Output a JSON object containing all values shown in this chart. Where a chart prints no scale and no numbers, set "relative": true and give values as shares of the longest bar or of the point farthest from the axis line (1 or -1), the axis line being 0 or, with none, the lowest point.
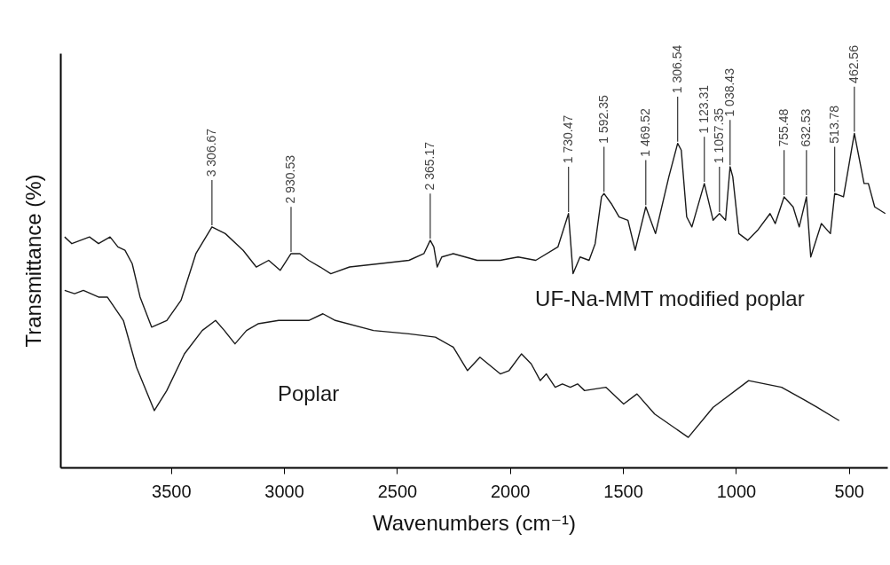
{
  "chart_data": {
    "type": "line",
    "relative": true,
    "xlabel": "Wavenumbers (cm⁻¹)",
    "ylabel": "Transmittance (%)",
    "xlim": [
      3990,
      330
    ],
    "xticks": [
      3500,
      3000,
      2500,
      2000,
      1500,
      1000,
      500
    ],
    "series": [
      {
        "name": "UF-Na-MMT modified poplar",
        "color": "#1a1a1a",
        "x": [
          3971,
          3939,
          3861,
          3821,
          3770,
          3735,
          3704,
          3672,
          3637,
          3586,
          3519,
          3456,
          3390,
          3319,
          3260,
          3181,
          3123,
          3068,
          3017,
          2969,
          2930,
          2891,
          2840,
          2793,
          2710,
          2577,
          2447,
          2381,
          2353,
          2337,
          2322,
          2302,
          2251,
          2145,
          2043,
          1964,
          1886,
          1788,
          1741,
          1721,
          1690,
          1650,
          1623,
          1595,
          1584,
          1552,
          1517,
          1478,
          1446,
          1399,
          1356,
          1297,
          1258,
          1242,
          1218,
          1195,
          1140,
          1101,
          1073,
          1046,
          1026,
          1014,
          987,
          948,
          904,
          849,
          826,
          787,
          747,
          720,
          688,
          669,
          622,
          582,
          563,
          524,
          476,
          433,
          414,
          386,
          339
        ],
        "values": [
          0.69,
          0.67,
          0.69,
          0.67,
          0.69,
          0.66,
          0.65,
          0.61,
          0.51,
          0.42,
          0.44,
          0.5,
          0.64,
          0.72,
          0.7,
          0.65,
          0.6,
          0.62,
          0.59,
          0.64,
          0.64,
          0.62,
          0.6,
          0.58,
          0.6,
          0.61,
          0.62,
          0.64,
          0.68,
          0.66,
          0.6,
          0.63,
          0.64,
          0.62,
          0.62,
          0.63,
          0.62,
          0.66,
          0.76,
          0.58,
          0.63,
          0.62,
          0.67,
          0.81,
          0.82,
          0.79,
          0.75,
          0.74,
          0.65,
          0.78,
          0.7,
          0.87,
          0.97,
          0.95,
          0.75,
          0.72,
          0.85,
          0.74,
          0.76,
          0.74,
          0.9,
          0.87,
          0.7,
          0.68,
          0.71,
          0.76,
          0.73,
          0.81,
          0.78,
          0.72,
          0.81,
          0.63,
          0.73,
          0.7,
          0.82,
          0.81,
          1.0,
          0.85,
          0.85,
          0.78,
          0.76
        ]
      },
      {
        "name": "Poplar",
        "color": "#1a1a1a",
        "x": [
          3971,
          3927,
          3888,
          3821,
          3782,
          3711,
          3653,
          3574,
          3519,
          3441,
          3362,
          3303,
          3264,
          3217,
          3166,
          3115,
          3024,
          2930,
          2891,
          2828,
          2773,
          2604,
          2447,
          2330,
          2251,
          2188,
          2133,
          2043,
          2004,
          1949,
          1906,
          1866,
          1839,
          1800,
          1768,
          1733,
          1701,
          1670,
          1576,
          1497,
          1438,
          1360,
          1211,
          1101,
          944,
          798,
          692,
          641,
          543
        ],
        "values": [
          0.53,
          0.52,
          0.53,
          0.51,
          0.51,
          0.44,
          0.3,
          0.17,
          0.23,
          0.34,
          0.41,
          0.44,
          0.41,
          0.37,
          0.41,
          0.43,
          0.44,
          0.44,
          0.44,
          0.46,
          0.44,
          0.41,
          0.4,
          0.39,
          0.36,
          0.29,
          0.33,
          0.28,
          0.29,
          0.34,
          0.31,
          0.26,
          0.28,
          0.24,
          0.25,
          0.24,
          0.25,
          0.23,
          0.24,
          0.19,
          0.22,
          0.16,
          0.09,
          0.18,
          0.26,
          0.24,
          0.2,
          0.18,
          0.14
        ]
      }
    ],
    "annotations": [
      {
        "text": "3 306.67",
        "x": 3319,
        "y": 0.72
      },
      {
        "text": "2 930.53",
        "x": 2969,
        "y": 0.64
      },
      {
        "text": "2 365.17",
        "x": 2353,
        "y": 0.68
      },
      {
        "text": "1 730.47",
        "x": 1741,
        "y": 0.76
      },
      {
        "text": "1 592.35",
        "x": 1584,
        "y": 0.82
      },
      {
        "text": "1 469.52",
        "x": 1399,
        "y": 0.78
      },
      {
        "text": "1 306.54",
        "x": 1258,
        "y": 0.97
      },
      {
        "text": "1 123.31",
        "x": 1140,
        "y": 0.85
      },
      {
        "text": "1 1057.35",
        "x": 1073,
        "y": 0.76
      },
      {
        "text": "1 038.43",
        "x": 1026,
        "y": 0.9
      },
      {
        "text": "755.48",
        "x": 787,
        "y": 0.81
      },
      {
        "text": "632.53",
        "x": 688,
        "y": 0.81
      },
      {
        "text": "513.78",
        "x": 563,
        "y": 0.82
      },
      {
        "text": "462.56",
        "x": 476,
        "y": 1.0
      }
    ]
  }
}
